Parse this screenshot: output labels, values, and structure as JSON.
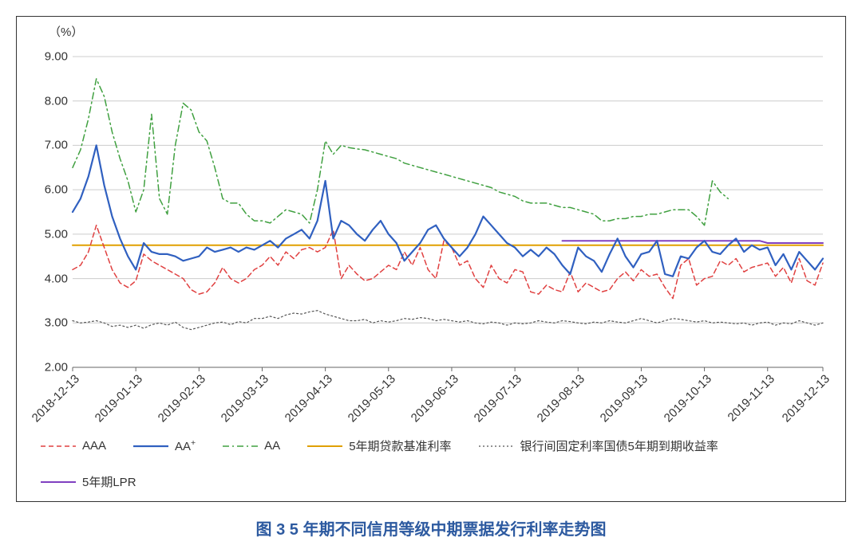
{
  "type": "line",
  "caption": "图 3  5 年期不同信用等级中期票据发行利率走势图",
  "y_axis": {
    "unit_label": "（%）",
    "min": 2.0,
    "max": 9.0,
    "tick_step": 1.0,
    "tick_labels": [
      "2.00",
      "3.00",
      "4.00",
      "5.00",
      "6.00",
      "7.00",
      "8.00",
      "9.00"
    ],
    "grid_color": "#cccccc"
  },
  "x_axis": {
    "tick_indices": [
      0,
      8,
      16,
      24,
      32,
      40,
      48,
      56,
      64,
      72,
      80,
      88,
      95
    ],
    "tick_labels": [
      "2018-12-13",
      "2019-01-13",
      "2019-02-13",
      "2019-03-13",
      "2019-04-13",
      "2019-05-13",
      "2019-06-13",
      "2019-07-13",
      "2019-08-13",
      "2019-09-13",
      "2019-10-13",
      "2019-11-13",
      "2019-12-13"
    ]
  },
  "n_points": 96,
  "colors": {
    "background": "#ffffff",
    "border": "#333333",
    "text": "#333333",
    "caption": "#2d5aa0",
    "AAA": "#e04040",
    "AA_plus": "#3060c0",
    "AA": "#40a040",
    "benchmark": "#e0a000",
    "gov_bond": "#555555",
    "LPR": "#8040c0"
  },
  "stroke_widths": {
    "AAA": 1.5,
    "AA_plus": 2.2,
    "AA": 1.5,
    "benchmark": 2.0,
    "gov_bond": 1.2,
    "LPR": 2.0,
    "grid": 1.0
  },
  "dash": {
    "AAA": "6 4",
    "AA_plus": "",
    "AA": "8 4 2 4",
    "benchmark": "",
    "gov_bond": "2 3",
    "LPR": ""
  },
  "series": {
    "AAA": {
      "label": "AAA",
      "values": [
        4.2,
        4.3,
        4.6,
        5.2,
        4.7,
        4.2,
        3.9,
        3.8,
        3.95,
        4.55,
        4.4,
        4.3,
        4.2,
        4.1,
        4.0,
        3.75,
        3.65,
        3.7,
        3.9,
        4.25,
        4.0,
        3.9,
        4.0,
        4.2,
        4.3,
        4.5,
        4.3,
        4.6,
        4.45,
        4.65,
        4.7,
        4.6,
        4.7,
        5.1,
        4.0,
        4.3,
        4.1,
        3.95,
        4.0,
        4.15,
        4.3,
        4.2,
        4.6,
        4.3,
        4.7,
        4.2,
        4.0,
        4.85,
        4.7,
        4.3,
        4.4,
        4.0,
        3.8,
        4.3,
        4.0,
        3.9,
        4.2,
        4.15,
        3.7,
        3.65,
        3.85,
        3.75,
        3.7,
        4.15,
        3.7,
        3.9,
        3.8,
        3.7,
        3.75,
        4.0,
        4.15,
        3.95,
        4.2,
        4.05,
        4.1,
        3.8,
        3.55,
        4.3,
        4.45,
        3.85,
        4.0,
        4.05,
        4.4,
        4.3,
        4.45,
        4.15,
        4.25,
        4.3,
        4.35,
        4.05,
        4.25,
        3.9,
        4.45,
        3.95,
        3.85,
        4.35
      ]
    },
    "AA_plus": {
      "label": "AA⁺",
      "values": [
        5.5,
        5.8,
        6.3,
        7.0,
        6.1,
        5.4,
        4.9,
        4.5,
        4.2,
        4.8,
        4.6,
        4.55,
        4.55,
        4.5,
        4.4,
        4.45,
        4.5,
        4.7,
        4.6,
        4.65,
        4.7,
        4.6,
        4.7,
        4.65,
        4.75,
        4.85,
        4.7,
        4.9,
        5.0,
        5.1,
        4.9,
        5.3,
        6.2,
        4.9,
        5.3,
        5.2,
        5.0,
        4.85,
        5.1,
        5.3,
        5.0,
        4.8,
        4.4,
        4.6,
        4.8,
        5.1,
        5.2,
        4.9,
        4.7,
        4.5,
        4.7,
        5.0,
        5.4,
        5.2,
        5.0,
        4.8,
        4.7,
        4.5,
        4.65,
        4.5,
        4.7,
        4.55,
        4.3,
        4.1,
        4.7,
        4.5,
        4.4,
        4.15,
        4.55,
        4.9,
        4.5,
        4.25,
        4.55,
        4.6,
        4.85,
        4.1,
        4.05,
        4.5,
        4.45,
        4.7,
        4.85,
        4.6,
        4.55,
        4.75,
        4.9,
        4.6,
        4.75,
        4.65,
        4.7,
        4.3,
        4.55,
        4.2,
        4.6,
        4.4,
        4.2,
        4.45
      ]
    },
    "AA": {
      "label": "AA",
      "values": [
        6.5,
        6.9,
        7.6,
        8.5,
        8.1,
        7.3,
        6.7,
        6.2,
        5.5,
        6.0,
        7.7,
        5.8,
        5.45,
        7.0,
        7.95,
        7.8,
        7.3,
        7.1,
        6.5,
        5.8,
        5.7,
        5.7,
        5.45,
        5.3,
        5.3,
        5.25,
        5.4,
        5.55,
        5.5,
        5.45,
        5.25,
        6.0,
        7.1,
        6.8,
        7.0,
        6.95,
        6.92,
        6.9,
        6.85,
        6.8,
        6.75,
        6.7,
        6.6,
        6.55,
        6.5,
        6.45,
        6.4,
        6.35,
        6.3,
        6.25,
        6.2,
        6.15,
        6.1,
        6.05,
        5.95,
        5.9,
        5.85,
        5.75,
        5.7,
        5.7,
        5.7,
        5.65,
        5.6,
        5.6,
        5.55,
        5.5,
        5.45,
        5.3,
        5.3,
        5.35,
        5.35,
        5.4,
        5.4,
        5.45,
        5.45,
        5.5,
        5.55,
        5.55,
        5.55,
        5.4,
        5.2,
        6.2,
        5.95,
        5.8,
        null,
        null,
        null,
        null,
        null,
        null,
        null,
        null,
        null,
        null,
        null,
        null
      ]
    },
    "benchmark": {
      "label": "5年期贷款基准利率",
      "values_fill": 4.75
    },
    "gov_bond": {
      "label": "银行间固定利率国债5年期到期收益率",
      "values": [
        3.05,
        3.0,
        3.02,
        3.05,
        3.0,
        2.92,
        2.95,
        2.9,
        2.95,
        2.88,
        2.96,
        3.0,
        2.95,
        3.02,
        2.9,
        2.85,
        2.9,
        2.95,
        3.0,
        3.02,
        2.96,
        3.03,
        3.0,
        3.1,
        3.1,
        3.15,
        3.1,
        3.18,
        3.22,
        3.2,
        3.25,
        3.28,
        3.2,
        3.15,
        3.1,
        3.05,
        3.05,
        3.08,
        3.0,
        3.05,
        3.02,
        3.05,
        3.1,
        3.08,
        3.12,
        3.1,
        3.05,
        3.08,
        3.05,
        3.02,
        3.05,
        3.0,
        2.98,
        3.02,
        3.0,
        2.95,
        3.0,
        2.98,
        3.0,
        3.05,
        3.02,
        3.0,
        3.05,
        3.03,
        3.0,
        2.98,
        3.02,
        3.0,
        3.05,
        3.02,
        3.0,
        3.05,
        3.1,
        3.05,
        3.0,
        3.05,
        3.1,
        3.08,
        3.05,
        3.02,
        3.05,
        3.0,
        3.02,
        3.0,
        2.98,
        3.0,
        2.95,
        3.0,
        3.02,
        2.95,
        3.0,
        2.98,
        3.05,
        3.0,
        2.95,
        3.0
      ]
    },
    "LPR": {
      "label": "5年期LPR",
      "start_index": 62,
      "values": [
        4.85,
        4.85,
        4.85,
        4.85,
        4.85,
        4.85,
        4.85,
        4.85,
        4.85,
        4.85,
        4.85,
        4.85,
        4.85,
        4.85,
        4.85,
        4.85,
        4.85,
        4.85,
        4.85,
        4.85,
        4.85,
        4.85,
        4.85,
        4.85,
        4.85,
        4.85,
        4.8,
        4.8,
        4.8,
        4.8,
        4.8,
        4.8,
        4.8,
        4.8
      ]
    }
  },
  "legend_order": [
    "AAA",
    "AA_plus",
    "AA",
    "benchmark",
    "gov_bond",
    "LPR"
  ]
}
